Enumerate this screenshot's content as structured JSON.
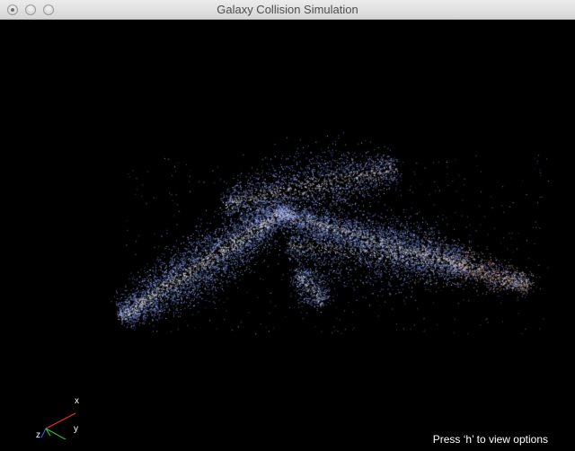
{
  "window": {
    "title": "Galaxy Collision Simulation",
    "buttons": [
      "close-button",
      "minimize-button",
      "zoom-button"
    ]
  },
  "viewport": {
    "background": "#000000",
    "particle_colors": [
      "#8ea2f5",
      "#6d87f0",
      "#b8c6ff",
      "#d7deff",
      "#ffffff",
      "#e9c9b9",
      "#c98e86"
    ]
  },
  "axes": {
    "x_label": "x",
    "y_label": "y",
    "z_label": "z",
    "x_color": "#ffffff",
    "y_color": "#2fd12f",
    "z_color": "#3a5cff",
    "extra_color": "#ff2a2a"
  },
  "status": {
    "hint": "Press ‘h’ to view options"
  }
}
